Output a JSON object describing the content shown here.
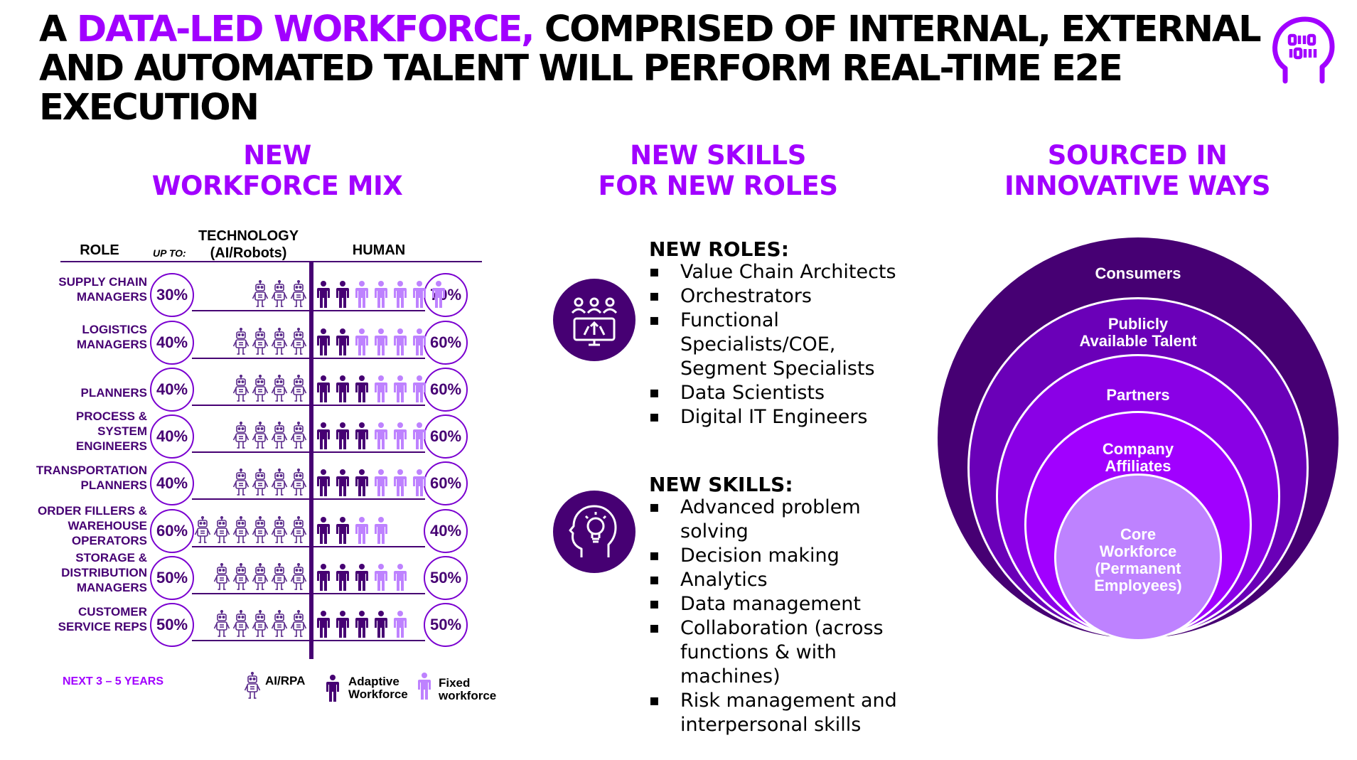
{
  "headline": {
    "part1": "A ",
    "accent": "DATA-LED WORKFORCE,",
    "part2": " COMPRISED OF INTERNAL, EXTERNAL AND AUTOMATED TALENT WILL PERFORM REAL-TIME E2E EXECUTION"
  },
  "sections": {
    "mix": [
      "NEW",
      "WORKFORCE MIX"
    ],
    "skills": [
      "NEW SKILLS",
      "FOR NEW ROLES"
    ],
    "sourced": [
      "SOURCED IN",
      "INNOVATIVE WAYS"
    ]
  },
  "table": {
    "role_header": "ROLE",
    "upto": "UP TO:",
    "tech_header": "TECHNOLOGY",
    "tech_sub": "(AI/Robots)",
    "human_header": "HUMAN",
    "rows": [
      {
        "role": [
          "SUPPLY CHAIN",
          "MANAGERS"
        ],
        "tech": "30%",
        "human": "70%",
        "robots": 3,
        "adaptive": 2,
        "fixed": 5
      },
      {
        "role": [
          "LOGISTICS",
          "MANAGERS"
        ],
        "tech": "40%",
        "human": "60%",
        "robots": 4,
        "adaptive": 2,
        "fixed": 4
      },
      {
        "role": [
          "PLANNERS"
        ],
        "tech": "40%",
        "human": "60%",
        "robots": 4,
        "adaptive": 3,
        "fixed": 3
      },
      {
        "role": [
          "PROCESS &",
          "SYSTEM",
          "ENGINEERS"
        ],
        "tech": "40%",
        "human": "60%",
        "robots": 4,
        "adaptive": 3,
        "fixed": 3
      },
      {
        "role": [
          "TRANSPORTATION",
          "PLANNERS"
        ],
        "tech": "40%",
        "human": "60%",
        "robots": 4,
        "adaptive": 3,
        "fixed": 3
      },
      {
        "role": [
          "ORDER FILLERS &",
          "WAREHOUSE",
          "OPERATORS"
        ],
        "tech": "60%",
        "human": "40%",
        "robots": 6,
        "adaptive": 2,
        "fixed": 2
      },
      {
        "role": [
          "STORAGE &",
          "DISTRIBUTION",
          "MANAGERS"
        ],
        "tech": "50%",
        "human": "50%",
        "robots": 5,
        "adaptive": 3,
        "fixed": 2
      },
      {
        "role": [
          "CUSTOMER",
          "SERVICE REPS"
        ],
        "tech": "50%",
        "human": "50%",
        "robots": 5,
        "adaptive": 4,
        "fixed": 1
      }
    ]
  },
  "legend": {
    "timeframe": "NEXT 3 – 5 YEARS",
    "ai": "AI/RPA",
    "adaptive": [
      "Adaptive",
      "Workforce"
    ],
    "fixed": [
      "Fixed",
      "workforce"
    ]
  },
  "roles": {
    "title": "NEW ROLES:",
    "items": [
      "Value Chain Architects",
      "Orchestrators",
      "Functional Specialists/COE, Segment Specialists",
      "Data Scientists",
      "Digital IT Engineers"
    ]
  },
  "skills": {
    "title": "NEW SKILLS:",
    "items": [
      "Advanced problem solving",
      "Decision making",
      "Analytics",
      "Data management",
      "Collaboration (across functions & with machines)",
      "Risk management and interpersonal skills"
    ]
  },
  "rings": [
    {
      "label": [
        "Consumers"
      ],
      "color": "#460073"
    },
    {
      "label": [
        "Publicly",
        "Available Talent"
      ],
      "color": "#6a00b8"
    },
    {
      "label": [
        "Partners"
      ],
      "color": "#8a00e6"
    },
    {
      "label": [
        "Company",
        "Affiliates"
      ],
      "color": "#a100ff"
    },
    {
      "label": [
        "Core",
        "Workforce",
        "(Permanent",
        "Employees)"
      ],
      "color": "#be82ff"
    }
  ],
  "colors": {
    "accent": "#a100ff",
    "dark_purple": "#460073",
    "light_purple": "#be82ff"
  }
}
